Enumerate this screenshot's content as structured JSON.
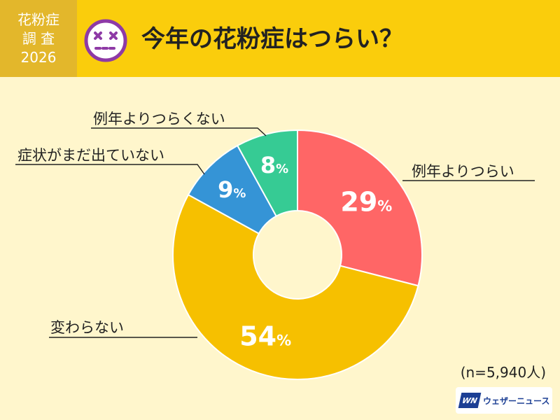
{
  "header": {
    "badge_line1": "花粉症",
    "badge_line2": "調 査",
    "badge_line3": "2026",
    "title": "今年の花粉症はつらい？"
  },
  "colors": {
    "header_bg": "#FACD0C",
    "badge_bg": "#E3B72B",
    "page_bg": "#FFF6CC",
    "face_icon": "#8E3AA6"
  },
  "chart_data": {
    "type": "pie",
    "donut": true,
    "categories": [
      "例年よりつらい",
      "変わらない",
      "症状がまだ出ていない",
      "例年よりつらくない"
    ],
    "values": [
      29,
      54,
      9,
      8
    ],
    "value_labels": [
      "29%",
      "54%",
      "9%",
      "8%"
    ],
    "colors": [
      "#FF6666",
      "#F6C000",
      "#3594D6",
      "#36CB94"
    ],
    "title": "今年の花粉症はつらい？"
  },
  "footer": {
    "sample_size": "(n=5,940人)",
    "logo_mark": "WN",
    "logo_text": "ウェザーニュース"
  }
}
